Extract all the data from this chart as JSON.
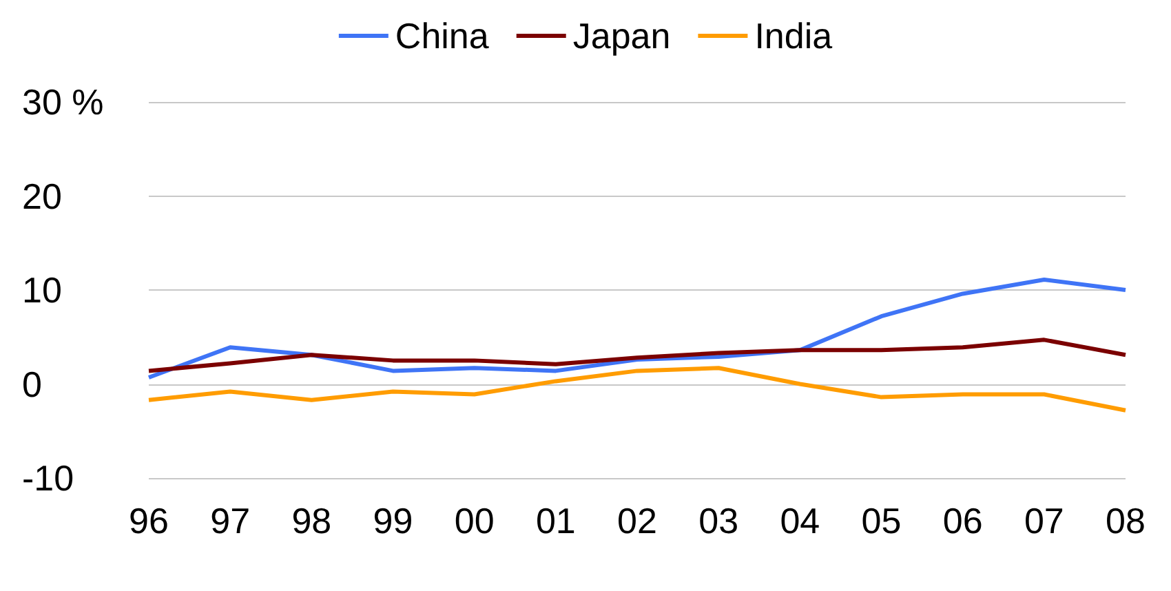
{
  "chart_data": {
    "type": "line",
    "categories": [
      "96",
      "97",
      "98",
      "99",
      "00",
      "01",
      "02",
      "03",
      "04",
      "05",
      "06",
      "07",
      "08"
    ],
    "series": [
      {
        "name": "China",
        "color": "#3f74f6",
        "values": [
          0.7,
          3.9,
          3.1,
          1.4,
          1.7,
          1.4,
          2.6,
          2.9,
          3.6,
          7.2,
          9.6,
          11.1,
          10.0
        ]
      },
      {
        "name": "Japan",
        "color": "#7b0000",
        "values": [
          1.4,
          2.2,
          3.1,
          2.5,
          2.5,
          2.1,
          2.8,
          3.3,
          3.6,
          3.6,
          3.9,
          4.7,
          3.1
        ]
      },
      {
        "name": "India",
        "color": "#ff9c00",
        "values": [
          -1.7,
          -0.8,
          -1.7,
          -0.8,
          -1.1,
          0.3,
          1.4,
          1.7,
          0.0,
          -1.4,
          -1.1,
          -1.1,
          -2.8
        ]
      }
    ],
    "ylim": [
      -10,
      30
    ],
    "yticks": [
      -10,
      0,
      10,
      20,
      {
        "value": 30,
        "label": "30 %"
      }
    ],
    "grid": "y",
    "legend": "top",
    "marker": "none",
    "line_style": "solid"
  }
}
